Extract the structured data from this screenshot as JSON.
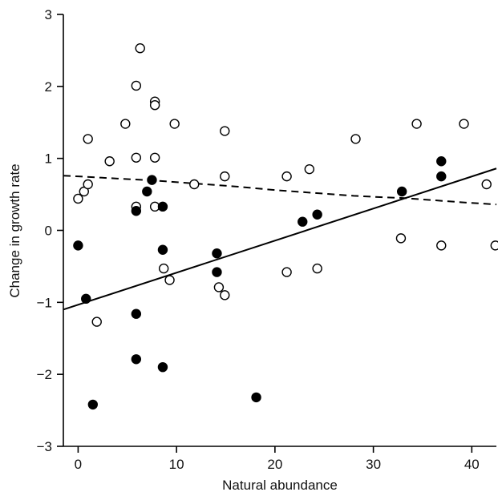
{
  "chart_data": {
    "type": "scatter",
    "title": "",
    "xlabel": "Natural abundance",
    "ylabel": "Change in growth rate",
    "xlim": [
      -1.5,
      42.5
    ],
    "ylim": [
      -3,
      3
    ],
    "xticks": [
      0,
      10,
      20,
      30,
      40
    ],
    "yticks": [
      -3,
      -2,
      -1,
      0,
      1,
      2,
      3
    ],
    "xtick_labels": [
      "0",
      "10",
      "20",
      "30",
      "40"
    ],
    "ytick_labels": [
      "−3",
      "−2",
      "−1",
      "0",
      "1",
      "2",
      "3"
    ],
    "grid": false,
    "legend": null,
    "series": [
      {
        "marker": "open-circle",
        "fill": "#ffffff",
        "stroke": "#000000",
        "points": [
          [
            0,
            0.44
          ],
          [
            0.6,
            0.54
          ],
          [
            1,
            0.64
          ],
          [
            1,
            1.27
          ],
          [
            1.9,
            -1.27
          ],
          [
            3.2,
            0.96
          ],
          [
            4.8,
            1.48
          ],
          [
            5.9,
            2.01
          ],
          [
            6.3,
            2.53
          ],
          [
            5.9,
            1.01
          ],
          [
            5.9,
            0.33
          ],
          [
            7.8,
            1.79
          ],
          [
            7.8,
            1.74
          ],
          [
            7.8,
            1.01
          ],
          [
            7.8,
            0.33
          ],
          [
            8.7,
            -0.53
          ],
          [
            9.3,
            -0.69
          ],
          [
            9.8,
            1.48
          ],
          [
            11.8,
            0.64
          ],
          [
            14.3,
            -0.79
          ],
          [
            14.9,
            -0.9
          ],
          [
            14.9,
            0.75
          ],
          [
            14.9,
            1.38
          ],
          [
            21.2,
            0.75
          ],
          [
            21.2,
            -0.58
          ],
          [
            23.5,
            0.85
          ],
          [
            24.3,
            -0.53
          ],
          [
            28.2,
            1.27
          ],
          [
            32.8,
            -0.11
          ],
          [
            34.4,
            1.48
          ],
          [
            36.9,
            -0.21
          ],
          [
            39.2,
            1.48
          ],
          [
            41.5,
            0.64
          ],
          [
            42.4,
            -0.21
          ]
        ]
      },
      {
        "marker": "filled-circle",
        "fill": "#000000",
        "stroke": "#000000",
        "points": [
          [
            0,
            -0.21
          ],
          [
            0.8,
            -0.95
          ],
          [
            1.5,
            -2.42
          ],
          [
            5.9,
            0.27
          ],
          [
            5.9,
            -1.16
          ],
          [
            5.9,
            -1.79
          ],
          [
            7,
            0.54
          ],
          [
            7.5,
            0.7
          ],
          [
            8.6,
            0.33
          ],
          [
            8.6,
            -0.27
          ],
          [
            8.6,
            -1.9
          ],
          [
            14.1,
            -0.32
          ],
          [
            14.1,
            -0.58
          ],
          [
            18.1,
            -2.32
          ],
          [
            22.8,
            0.12
          ],
          [
            24.3,
            0.22
          ],
          [
            32.9,
            0.54
          ],
          [
            36.9,
            0.96
          ],
          [
            36.9,
            0.75
          ]
        ]
      }
    ],
    "trend_lines": [
      {
        "style": "solid",
        "color": "#000000",
        "points": [
          [
            -1.5,
            -1.1
          ],
          [
            42.5,
            0.86
          ]
        ]
      },
      {
        "style": "dashed",
        "color": "#000000",
        "points": [
          [
            -1.5,
            0.76
          ],
          [
            0,
            0.75
          ],
          [
            4,
            0.72
          ],
          [
            8,
            0.69
          ],
          [
            12,
            0.65
          ],
          [
            16,
            0.61
          ],
          [
            20,
            0.56
          ],
          [
            24,
            0.52
          ],
          [
            28,
            0.48
          ],
          [
            31,
            0.46
          ],
          [
            33,
            0.45
          ],
          [
            36,
            0.42
          ],
          [
            39,
            0.39
          ],
          [
            42.5,
            0.36
          ]
        ]
      }
    ]
  }
}
